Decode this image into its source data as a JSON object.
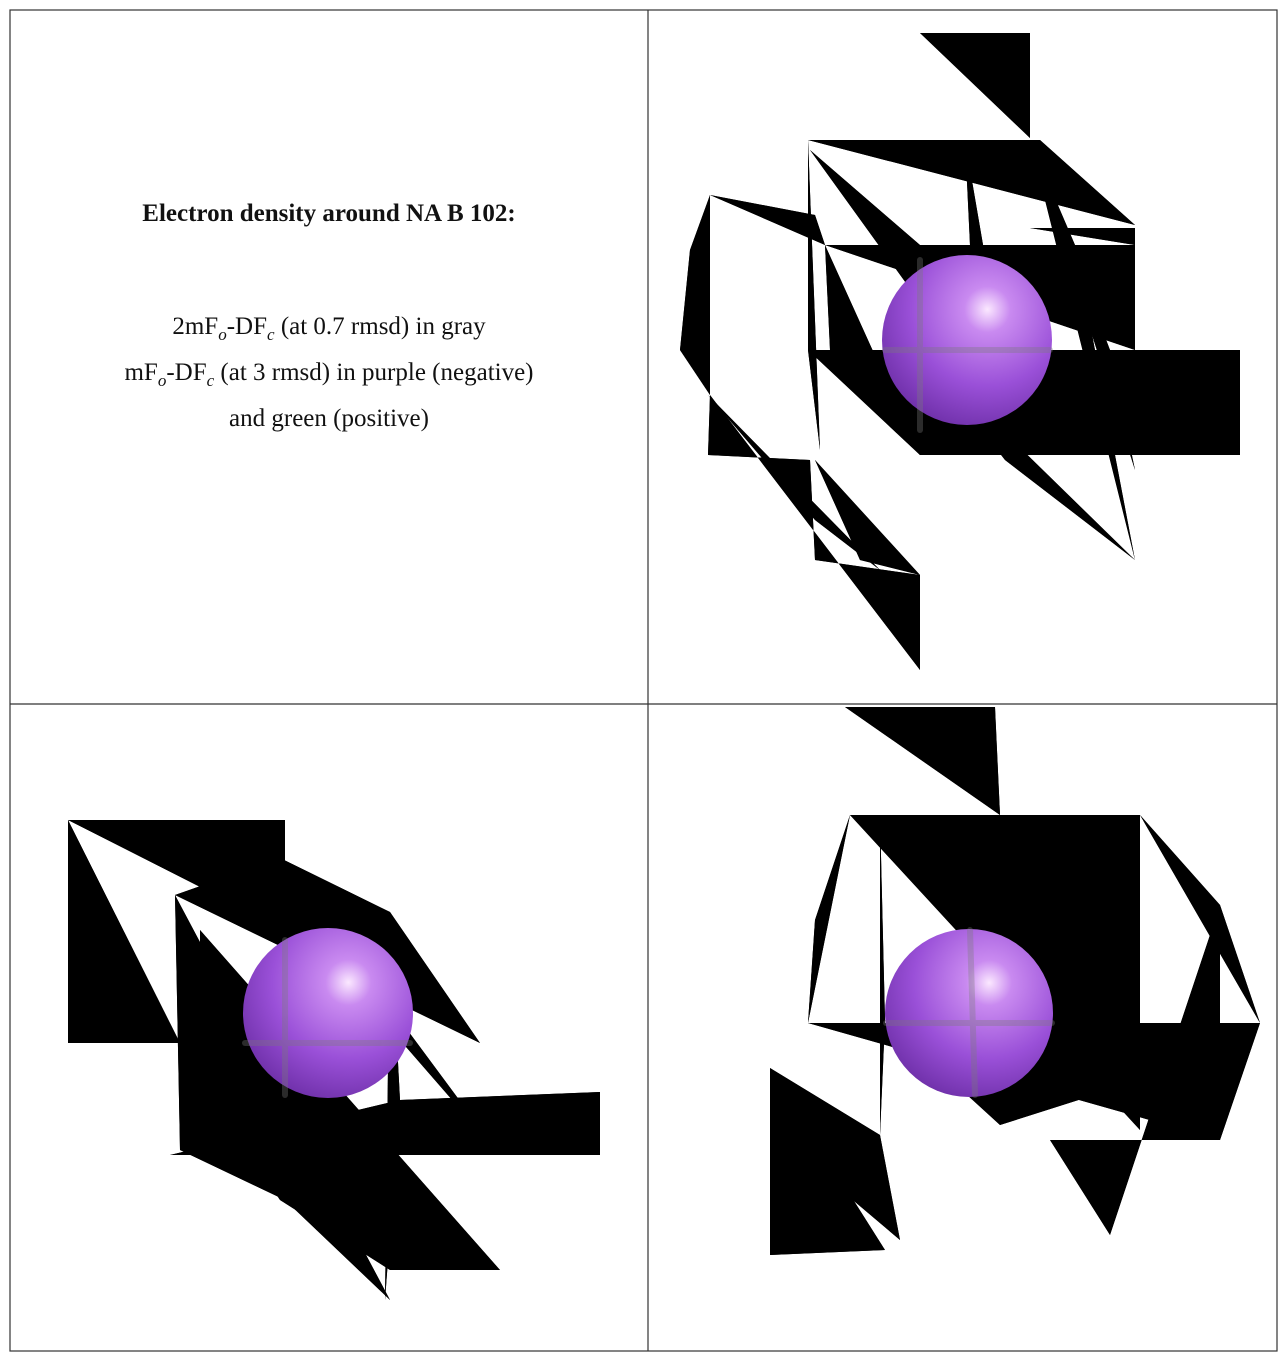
{
  "panel": {
    "title": "Electron density around NA B 102:",
    "lines": [
      {
        "parts": [
          "2mF",
          "o",
          "-DF",
          "c",
          " (at 0.7 rmsd) in gray"
        ]
      },
      {
        "parts": [
          "mF",
          "o",
          "-DF",
          "c",
          " (at 3 rmsd) in purple (negative)"
        ]
      },
      {
        "parts": [
          "and green (positive)"
        ]
      }
    ]
  }
}
